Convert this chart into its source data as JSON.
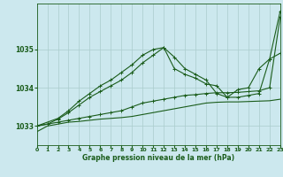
{
  "background_color": "#cce8ee",
  "grid_color": "#aacccc",
  "line_color": "#1a5c1a",
  "xlabel": "Graphe pression niveau de la mer (hPa)",
  "xlim": [
    0,
    23
  ],
  "ylim": [
    1032.5,
    1036.2
  ],
  "yticks": [
    1033,
    1034,
    1035
  ],
  "xticks": [
    0,
    1,
    2,
    3,
    4,
    5,
    6,
    7,
    8,
    9,
    10,
    11,
    12,
    13,
    14,
    15,
    16,
    17,
    18,
    19,
    20,
    21,
    22,
    23
  ],
  "series": [
    {
      "x": [
        0,
        1,
        2,
        3,
        4,
        5,
        6,
        7,
        8,
        9,
        10,
        11,
        12,
        13,
        14,
        15,
        16,
        17,
        18,
        19,
        20,
        21,
        22,
        23
      ],
      "y": [
        1032.85,
        1033.0,
        1033.05,
        1033.1,
        1033.12,
        1033.15,
        1033.18,
        1033.2,
        1033.22,
        1033.25,
        1033.3,
        1033.35,
        1033.4,
        1033.45,
        1033.5,
        1033.55,
        1033.6,
        1033.62,
        1033.63,
        1033.63,
        1033.64,
        1033.65,
        1033.66,
        1033.7
      ],
      "marker": null,
      "linewidth": 0.8
    },
    {
      "x": [
        0,
        1,
        2,
        3,
        4,
        5,
        6,
        7,
        8,
        9,
        10,
        11,
        12,
        13,
        14,
        15,
        16,
        17,
        18,
        19,
        20,
        21,
        22,
        23
      ],
      "y": [
        1033.0,
        1033.05,
        1033.1,
        1033.15,
        1033.2,
        1033.25,
        1033.3,
        1033.35,
        1033.4,
        1033.5,
        1033.6,
        1033.65,
        1033.7,
        1033.75,
        1033.8,
        1033.82,
        1033.85,
        1033.87,
        1033.87,
        1033.88,
        1033.9,
        1033.92,
        1034.0,
        1035.85
      ],
      "marker": "+",
      "linewidth": 0.8
    },
    {
      "x": [
        0,
        2,
        3,
        4,
        5,
        6,
        7,
        8,
        9,
        10,
        11,
        12,
        13,
        14,
        15,
        16,
        17,
        18,
        19,
        20,
        21,
        22,
        23
      ],
      "y": [
        1033.0,
        1033.2,
        1033.4,
        1033.65,
        1033.85,
        1034.05,
        1034.2,
        1034.4,
        1034.6,
        1034.85,
        1035.0,
        1035.05,
        1034.5,
        1034.35,
        1034.25,
        1034.1,
        1034.05,
        1033.75,
        1033.75,
        1033.8,
        1033.85,
        1034.75,
        1034.9
      ],
      "marker": "+",
      "linewidth": 0.8
    },
    {
      "x": [
        0,
        1,
        2,
        3,
        4,
        5,
        6,
        7,
        8,
        9,
        10,
        11,
        12,
        13,
        14,
        15,
        16,
        17,
        18,
        19,
        20,
        21,
        22,
        23
      ],
      "y": [
        1033.0,
        1033.05,
        1033.18,
        1033.35,
        1033.55,
        1033.75,
        1033.9,
        1034.05,
        1034.2,
        1034.4,
        1034.65,
        1034.85,
        1035.05,
        1034.8,
        1034.5,
        1034.35,
        1034.2,
        1033.85,
        1033.75,
        1033.95,
        1034.0,
        1034.5,
        1034.75,
        1036.0
      ],
      "marker": "+",
      "linewidth": 0.8
    }
  ]
}
